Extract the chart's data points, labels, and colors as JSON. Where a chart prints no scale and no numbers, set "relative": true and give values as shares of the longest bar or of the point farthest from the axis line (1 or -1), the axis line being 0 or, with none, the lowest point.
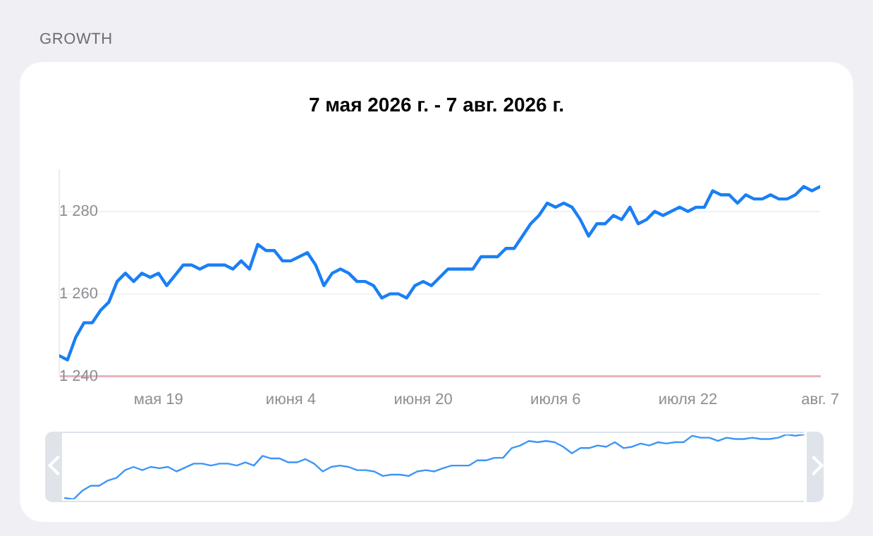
{
  "chart_data": [
    {
      "type": "line",
      "title": "GROWTH",
      "subtitle": "7 мая 2026 г. - 7 авг. 2026 г.",
      "x": [
        "2026-05-07",
        "2026-05-08",
        "2026-05-09",
        "2026-05-10",
        "2026-05-11",
        "2026-05-12",
        "2026-05-13",
        "2026-05-14",
        "2026-05-15",
        "2026-05-16",
        "2026-05-17",
        "2026-05-18",
        "2026-05-19",
        "2026-05-20",
        "2026-05-21",
        "2026-05-22",
        "2026-05-23",
        "2026-05-24",
        "2026-05-25",
        "2026-05-27",
        "2026-05-28",
        "2026-05-29",
        "2026-05-30",
        "2026-05-31",
        "2026-06-01",
        "2026-06-02",
        "2026-06-03",
        "2026-06-04",
        "2026-06-06",
        "2026-06-07",
        "2026-06-08",
        "2026-06-09",
        "2026-06-10",
        "2026-06-11",
        "2026-06-12",
        "2026-06-13",
        "2026-06-14",
        "2026-06-15",
        "2026-06-16",
        "2026-06-17",
        "2026-06-18",
        "2026-06-19",
        "2026-06-20",
        "2026-06-21",
        "2026-06-22",
        "2026-06-23",
        "2026-06-24",
        "2026-06-26",
        "2026-06-27",
        "2026-06-29",
        "2026-06-30",
        "2026-07-01",
        "2026-07-03",
        "2026-07-04",
        "2026-07-05",
        "2026-07-06",
        "2026-07-07",
        "2026-07-08",
        "2026-07-09",
        "2026-07-10",
        "2026-07-11",
        "2026-07-12",
        "2026-07-13",
        "2026-07-14",
        "2026-07-15",
        "2026-07-16",
        "2026-07-17",
        "2026-07-18",
        "2026-07-19",
        "2026-07-21",
        "2026-07-22",
        "2026-07-23",
        "2026-07-24",
        "2026-07-25",
        "2026-07-26",
        "2026-07-27",
        "2026-07-28",
        "2026-07-29",
        "2026-07-30",
        "2026-07-31",
        "2026-08-01",
        "2026-08-02",
        "2026-08-03",
        "2026-08-04",
        "2026-08-05",
        "2026-08-06",
        "2026-08-07"
      ],
      "series": [
        {
          "color": "#1a7ff5",
          "values": [
            1245,
            1244,
            1249.5,
            1253,
            1253,
            1256,
            1258,
            1263,
            1265,
            1263,
            1265,
            1264,
            1265,
            1262,
            1264.5,
            1267,
            1267,
            1266,
            1267,
            1267,
            1266,
            1268,
            1266,
            1272,
            1270.5,
            1270.5,
            1268,
            1268,
            1270,
            1267,
            1262,
            1265,
            1266,
            1265,
            1263,
            1263,
            1262,
            1259,
            1260,
            1260,
            1259,
            1262,
            1263,
            1262,
            1264,
            1266,
            1266,
            1266,
            1269,
            1269,
            1271,
            1271,
            1277,
            1279,
            1282,
            1281,
            1282,
            1281,
            1278,
            1274,
            1277,
            1277,
            1279,
            1278,
            1281,
            1277,
            1278,
            1280,
            1279,
            1281,
            1280,
            1281,
            1281,
            1285,
            1284,
            1284,
            1282,
            1284,
            1283,
            1283,
            1284,
            1283,
            1283,
            1284,
            1286,
            1285,
            1286
          ]
        }
      ],
      "xlim": [
        "2026-05-07",
        "2026-08-07"
      ],
      "xticks": [
        {
          "value": "2026-05-19",
          "label": "мая 19"
        },
        {
          "value": "2026-06-04",
          "label": "июня 4"
        },
        {
          "value": "2026-06-20",
          "label": "июня 20"
        },
        {
          "value": "2026-07-06",
          "label": "июля 6"
        },
        {
          "value": "2026-07-22",
          "label": "июля 22"
        },
        {
          "value": "2026-08-07",
          "label": "авг. 7"
        }
      ],
      "ylim": [
        1240,
        1290
      ],
      "yticks": [
        {
          "value": 1240,
          "label": "1 240"
        },
        {
          "value": 1260,
          "label": "1 260"
        },
        {
          "value": 1280,
          "label": "1 280"
        }
      ],
      "grid": "y",
      "marker": "none",
      "legend": false
    },
    {
      "type": "line",
      "categories": [
        null,
        null,
        null,
        null,
        null,
        null,
        null,
        null,
        null,
        null,
        null,
        null,
        null,
        null,
        null,
        null,
        null,
        null,
        null,
        null,
        null,
        null,
        null,
        null,
        null,
        null,
        null,
        null,
        null,
        null,
        null,
        null,
        null,
        null,
        null,
        null,
        null,
        null,
        null,
        null,
        null,
        null,
        null,
        null,
        null,
        null,
        null,
        null,
        null,
        null,
        null,
        null,
        null,
        null,
        null,
        null,
        null,
        null,
        null,
        null,
        null,
        null,
        null,
        null,
        null,
        null,
        null,
        null,
        null,
        null,
        null,
        null,
        null,
        null,
        null,
        null,
        null,
        null,
        null,
        null,
        null,
        null,
        null,
        null,
        null,
        null,
        null
      ],
      "series": [
        {
          "color": "#3d95f7",
          "values": [
            0.02,
            0,
            0.13,
            0.21,
            0.21,
            0.29,
            0.33,
            0.45,
            0.5,
            0.45,
            0.5,
            0.48,
            0.5,
            0.43,
            0.49,
            0.55,
            0.55,
            0.52,
            0.55,
            0.55,
            0.52,
            0.57,
            0.52,
            0.67,
            0.63,
            0.63,
            0.57,
            0.57,
            0.62,
            0.55,
            0.43,
            0.5,
            0.52,
            0.5,
            0.45,
            0.45,
            0.43,
            0.36,
            0.38,
            0.38,
            0.36,
            0.43,
            0.45,
            0.43,
            0.48,
            0.52,
            0.52,
            0.52,
            0.6,
            0.6,
            0.64,
            0.64,
            0.79,
            0.83,
            0.9,
            0.88,
            0.9,
            0.88,
            0.81,
            0.71,
            0.79,
            0.79,
            0.83,
            0.81,
            0.88,
            0.79,
            0.81,
            0.86,
            0.83,
            0.88,
            0.86,
            0.88,
            0.88,
            0.98,
            0.95,
            0.95,
            0.9,
            0.95,
            0.93,
            0.93,
            0.95,
            0.93,
            0.93,
            0.95,
            1,
            0.98,
            1
          ]
        }
      ],
      "relative": true,
      "marker": "none",
      "legend": false
    }
  ]
}
